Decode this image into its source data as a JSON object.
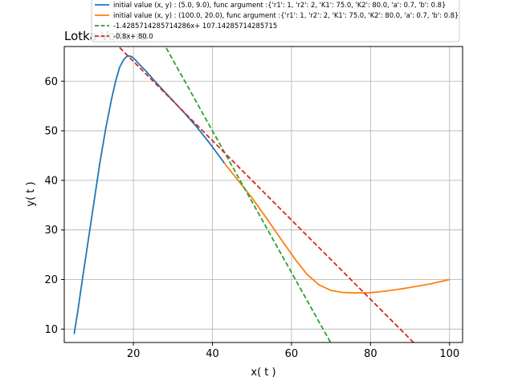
{
  "chart_data": {
    "type": "line",
    "title": "Lotka-Volterra",
    "xlabel": "x( t )",
    "ylabel": "y( t )",
    "xlim": [
      2.5,
      103.3
    ],
    "ylim": [
      7.3,
      67.0
    ],
    "xticks": [
      20,
      40,
      60,
      80,
      100
    ],
    "yticks": [
      10,
      20,
      30,
      40,
      50,
      60
    ],
    "grid": true,
    "legend_position": "top",
    "series": [
      {
        "name": "initial value (x, y) : (5.0, 9.0), func argument :{'r1': 1, 'r2': 2, 'K1': 75.0, 'K2': 80.0, 'a': 0.7, 'b': 0.8}",
        "style": "solid",
        "color": "#1f77b4",
        "x": [
          5.0,
          6.0,
          7.0,
          8.5,
          10.0,
          11.5,
          13.0,
          14.5,
          15.5,
          16.5,
          17.5,
          18.3,
          19.0,
          19.7,
          20.5,
          21.5,
          23.0,
          25.0,
          27.5,
          30.0,
          33.0,
          36.0,
          39.0,
          42.0,
          43.0
        ],
        "y": [
          9.0,
          14.0,
          19.5,
          27.5,
          35.5,
          43.5,
          50.5,
          56.5,
          60.0,
          62.8,
          64.3,
          65.0,
          65.1,
          64.9,
          64.3,
          63.4,
          62.2,
          60.4,
          58.2,
          56.1,
          53.5,
          50.8,
          47.8,
          44.6,
          43.5
        ]
      },
      {
        "name": "initial value (x, y) : (100.0, 20.0), func argument :{'r1': 1, 'r2': 2, 'K1': 75.0, 'K2': 80.0, 'a': 0.7, 'b': 0.8}",
        "style": "solid",
        "color": "#ff7f0e",
        "x": [
          43.0,
          46.0,
          50.0,
          54.0,
          58.0,
          61.0,
          64.0,
          67.0,
          70.0,
          73.0,
          76.0,
          79.0,
          82.0,
          86.0,
          90.0,
          95.0,
          100.0
        ],
        "y": [
          43.5,
          40.5,
          36.5,
          32.0,
          27.4,
          24.0,
          21.0,
          18.9,
          17.8,
          17.4,
          17.3,
          17.3,
          17.5,
          17.9,
          18.4,
          19.1,
          20.0
        ]
      },
      {
        "name": "-1.4285714285714286x+ 107.14285714285715",
        "style": "dashed",
        "color": "#2ca02c",
        "slope": -1.4285714285714286,
        "intercept": 107.14285714285715,
        "x_range": [
          28.3,
          70.0
        ]
      },
      {
        "name": "-0.8x+ 80.0",
        "style": "dashed",
        "color": "#d62728",
        "slope": -0.8,
        "intercept": 80.0,
        "x_range": [
          16.5,
          91.2
        ]
      }
    ]
  }
}
